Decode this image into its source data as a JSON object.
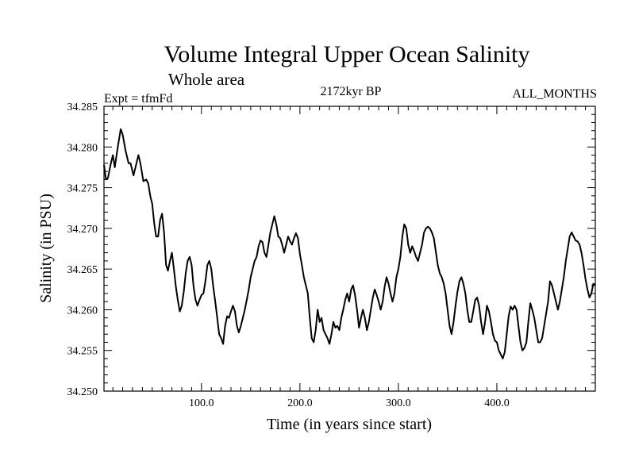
{
  "chart_data": {
    "type": "line",
    "title": "Volume Integral Upper Ocean Salinity",
    "subtitle": "Whole area",
    "left_label": "Expt = tfmFd",
    "center_label": "2172kyr BP",
    "right_label": "ALL_MONTHS",
    "xlabel": "Time (in years since start)",
    "ylabel": "Salinity (in PSU)",
    "xlim": [
      1,
      500
    ],
    "ylim": [
      34.25,
      34.285
    ],
    "x_ticks": [
      {
        "value": 100,
        "label": "100.0"
      },
      {
        "value": 200,
        "label": "200.0"
      },
      {
        "value": 300,
        "label": "300.0"
      },
      {
        "value": 400,
        "label": "400.0"
      }
    ],
    "y_ticks": [
      {
        "value": 34.25,
        "label": "34.250"
      },
      {
        "value": 34.255,
        "label": "34.255"
      },
      {
        "value": 34.26,
        "label": "34.260"
      },
      {
        "value": 34.265,
        "label": "34.265"
      },
      {
        "value": 34.27,
        "label": "34.270"
      },
      {
        "value": 34.275,
        "label": "34.275"
      },
      {
        "value": 34.28,
        "label": "34.280"
      },
      {
        "value": 34.285,
        "label": "34.285"
      }
    ],
    "series": [
      {
        "name": "Salinity",
        "color": "#000000",
        "points": [
          [
            1,
            34.2778
          ],
          [
            3,
            34.276
          ],
          [
            5,
            34.2762
          ],
          [
            8,
            34.278
          ],
          [
            10,
            34.279
          ],
          [
            12,
            34.2775
          ],
          [
            15,
            34.28
          ],
          [
            18,
            34.2822
          ],
          [
            20,
            34.2815
          ],
          [
            23,
            34.2795
          ],
          [
            26,
            34.278
          ],
          [
            28,
            34.278
          ],
          [
            31,
            34.2765
          ],
          [
            34,
            34.278
          ],
          [
            36,
            34.279
          ],
          [
            38,
            34.278
          ],
          [
            41,
            34.2758
          ],
          [
            44,
            34.276
          ],
          [
            46,
            34.2755
          ],
          [
            48,
            34.274
          ],
          [
            50,
            34.273
          ],
          [
            52,
            34.2706
          ],
          [
            54,
            34.269
          ],
          [
            56,
            34.269
          ],
          [
            58,
            34.271
          ],
          [
            60,
            34.2718
          ],
          [
            62,
            34.2695
          ],
          [
            64,
            34.2655
          ],
          [
            66,
            34.2648
          ],
          [
            68,
            34.266
          ],
          [
            70,
            34.267
          ],
          [
            72,
            34.265
          ],
          [
            74,
            34.2628
          ],
          [
            76,
            34.2612
          ],
          [
            78,
            34.2598
          ],
          [
            80,
            34.2605
          ],
          [
            82,
            34.2622
          ],
          [
            84,
            34.2645
          ],
          [
            86,
            34.266
          ],
          [
            88,
            34.2665
          ],
          [
            90,
            34.2655
          ],
          [
            92,
            34.2628
          ],
          [
            94,
            34.2612
          ],
          [
            96,
            34.2605
          ],
          [
            98,
            34.2612
          ],
          [
            100,
            34.2618
          ],
          [
            102,
            34.262
          ],
          [
            104,
            34.2635
          ],
          [
            106,
            34.2655
          ],
          [
            108,
            34.266
          ],
          [
            110,
            34.265
          ],
          [
            112,
            34.2628
          ],
          [
            114,
            34.261
          ],
          [
            116,
            34.259
          ],
          [
            118,
            34.257
          ],
          [
            120,
            34.2565
          ],
          [
            122,
            34.2558
          ],
          [
            124,
            34.258
          ],
          [
            126,
            34.2592
          ],
          [
            128,
            34.259
          ],
          [
            130,
            34.2598
          ],
          [
            132,
            34.2605
          ],
          [
            134,
            34.2598
          ],
          [
            136,
            34.258
          ],
          [
            138,
            34.2572
          ],
          [
            140,
            34.258
          ],
          [
            142,
            34.259
          ],
          [
            144,
            34.26
          ],
          [
            146,
            34.2612
          ],
          [
            148,
            34.2625
          ],
          [
            150,
            34.264
          ],
          [
            152,
            34.265
          ],
          [
            154,
            34.266
          ],
          [
            156,
            34.2665
          ],
          [
            158,
            34.2678
          ],
          [
            160,
            34.2685
          ],
          [
            162,
            34.2683
          ],
          [
            164,
            34.267
          ],
          [
            166,
            34.2665
          ],
          [
            168,
            34.268
          ],
          [
            170,
            34.2695
          ],
          [
            172,
            34.2705
          ],
          [
            174,
            34.2715
          ],
          [
            176,
            34.2705
          ],
          [
            178,
            34.269
          ],
          [
            180,
            34.2688
          ],
          [
            182,
            34.268
          ],
          [
            184,
            34.267
          ],
          [
            186,
            34.268
          ],
          [
            188,
            34.269
          ],
          [
            190,
            34.2684
          ],
          [
            192,
            34.268
          ],
          [
            194,
            34.2688
          ],
          [
            196,
            34.2694
          ],
          [
            198,
            34.2688
          ],
          [
            200,
            34.2668
          ],
          [
            202,
            34.2655
          ],
          [
            204,
            34.264
          ],
          [
            206,
            34.263
          ],
          [
            208,
            34.262
          ],
          [
            210,
            34.259
          ],
          [
            212,
            34.2565
          ],
          [
            214,
            34.256
          ],
          [
            216,
            34.2575
          ],
          [
            218,
            34.26
          ],
          [
            220,
            34.2585
          ],
          [
            222,
            34.259
          ],
          [
            224,
            34.2575
          ],
          [
            226,
            34.257
          ],
          [
            228,
            34.2565
          ],
          [
            230,
            34.2558
          ],
          [
            232,
            34.257
          ],
          [
            234,
            34.2585
          ],
          [
            236,
            34.2578
          ],
          [
            238,
            34.258
          ],
          [
            240,
            34.2575
          ],
          [
            242,
            34.259
          ],
          [
            244,
            34.26
          ],
          [
            246,
            34.2612
          ],
          [
            248,
            34.262
          ],
          [
            250,
            34.261
          ],
          [
            252,
            34.2625
          ],
          [
            254,
            34.263
          ],
          [
            256,
            34.2618
          ],
          [
            258,
            34.26
          ],
          [
            260,
            34.2578
          ],
          [
            262,
            34.259
          ],
          [
            264,
            34.26
          ],
          [
            266,
            34.259
          ],
          [
            268,
            34.2575
          ],
          [
            270,
            34.2585
          ],
          [
            272,
            34.26
          ],
          [
            274,
            34.2615
          ],
          [
            276,
            34.2625
          ],
          [
            278,
            34.2618
          ],
          [
            280,
            34.261
          ],
          [
            282,
            34.26
          ],
          [
            284,
            34.261
          ],
          [
            286,
            34.2628
          ],
          [
            288,
            34.264
          ],
          [
            290,
            34.2632
          ],
          [
            292,
            34.262
          ],
          [
            294,
            34.261
          ],
          [
            296,
            34.262
          ],
          [
            298,
            34.264
          ],
          [
            300,
            34.265
          ],
          [
            302,
            34.2665
          ],
          [
            304,
            34.269
          ],
          [
            306,
            34.2705
          ],
          [
            308,
            34.27
          ],
          [
            310,
            34.268
          ],
          [
            312,
            34.267
          ],
          [
            314,
            34.2678
          ],
          [
            316,
            34.2672
          ],
          [
            318,
            34.2665
          ],
          [
            320,
            34.266
          ],
          [
            322,
            34.267
          ],
          [
            324,
            34.268
          ],
          [
            326,
            34.2695
          ],
          [
            328,
            34.27
          ],
          [
            330,
            34.2702
          ],
          [
            332,
            34.27
          ],
          [
            334,
            34.2695
          ],
          [
            336,
            34.2688
          ],
          [
            338,
            34.2672
          ],
          [
            340,
            34.2655
          ],
          [
            342,
            34.2645
          ],
          [
            344,
            34.264
          ],
          [
            346,
            34.2632
          ],
          [
            348,
            34.262
          ],
          [
            350,
            34.26
          ],
          [
            352,
            34.258
          ],
          [
            354,
            34.257
          ],
          [
            356,
            34.2585
          ],
          [
            358,
            34.2605
          ],
          [
            360,
            34.2622
          ],
          [
            362,
            34.2635
          ],
          [
            364,
            34.264
          ],
          [
            366,
            34.2632
          ],
          [
            368,
            34.262
          ],
          [
            370,
            34.26
          ],
          [
            372,
            34.2585
          ],
          [
            374,
            34.2585
          ],
          [
            376,
            34.2598
          ],
          [
            378,
            34.2612
          ],
          [
            380,
            34.2615
          ],
          [
            382,
            34.2605
          ],
          [
            384,
            34.2585
          ],
          [
            386,
            34.257
          ],
          [
            388,
            34.2585
          ],
          [
            390,
            34.2605
          ],
          [
            392,
            34.2598
          ],
          [
            394,
            34.2585
          ],
          [
            396,
            34.257
          ],
          [
            398,
            34.2562
          ],
          [
            400,
            34.256
          ],
          [
            402,
            34.255
          ],
          [
            404,
            34.2545
          ],
          [
            406,
            34.254
          ],
          [
            408,
            34.2548
          ],
          [
            410,
            34.257
          ],
          [
            412,
            34.2592
          ],
          [
            414,
            34.2604
          ],
          [
            416,
            34.26
          ],
          [
            418,
            34.2605
          ],
          [
            420,
            34.26
          ],
          [
            422,
            34.258
          ],
          [
            424,
            34.256
          ],
          [
            426,
            34.255
          ],
          [
            428,
            34.2553
          ],
          [
            430,
            34.256
          ],
          [
            432,
            34.2585
          ],
          [
            434,
            34.2608
          ],
          [
            436,
            34.26
          ],
          [
            438,
            34.259
          ],
          [
            440,
            34.2575
          ],
          [
            442,
            34.256
          ],
          [
            444,
            34.256
          ],
          [
            446,
            34.2565
          ],
          [
            448,
            34.258
          ],
          [
            450,
            34.2595
          ],
          [
            452,
            34.261
          ],
          [
            454,
            34.2635
          ],
          [
            456,
            34.263
          ],
          [
            458,
            34.262
          ],
          [
            460,
            34.261
          ],
          [
            462,
            34.26
          ],
          [
            464,
            34.261
          ],
          [
            466,
            34.2625
          ],
          [
            468,
            34.264
          ],
          [
            470,
            34.266
          ],
          [
            472,
            34.2675
          ],
          [
            474,
            34.269
          ],
          [
            476,
            34.2695
          ],
          [
            478,
            34.269
          ],
          [
            480,
            34.2685
          ],
          [
            482,
            34.2684
          ],
          [
            484,
            34.268
          ],
          [
            486,
            34.267
          ],
          [
            488,
            34.2655
          ],
          [
            490,
            34.2638
          ],
          [
            492,
            34.2625
          ],
          [
            494,
            34.2615
          ],
          [
            496,
            34.262
          ],
          [
            498,
            34.2632
          ],
          [
            500,
            34.263
          ]
        ]
      }
    ]
  }
}
